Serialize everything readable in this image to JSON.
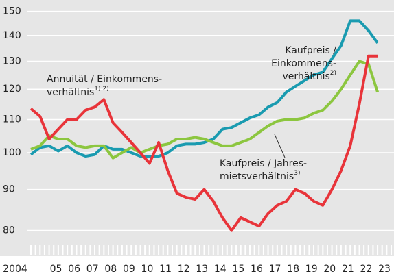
{
  "chart_data": {
    "type": "line",
    "x": [
      2004,
      2004.5,
      2005,
      2005.5,
      2006,
      2006.5,
      2007,
      2007.5,
      2008,
      2008.5,
      2009,
      2009.5,
      2010,
      2010.5,
      2011,
      2011.5,
      2012,
      2012.5,
      2013,
      2013.5,
      2014,
      2014.5,
      2015,
      2015.5,
      2016,
      2016.5,
      2017,
      2017.5,
      2018,
      2018.5,
      2019,
      2019.5,
      2020,
      2020.5,
      2021,
      2021.5,
      2022,
      2022.5,
      2023
    ],
    "series": [
      {
        "name": "Kaufpreis / Einkommensverhältnis",
        "color": "#1a9bb0",
        "values": [
          99.5,
          101.5,
          102,
          100.5,
          102,
          100,
          99,
          99.5,
          102,
          101,
          101,
          100,
          99,
          99,
          99,
          100,
          102,
          102.5,
          102.5,
          103,
          104,
          107,
          107.5,
          109,
          110.5,
          111.5,
          114,
          115.5,
          119,
          121,
          123,
          125,
          126,
          131,
          136,
          146,
          146,
          142,
          137
        ]
      },
      {
        "name": "Kaufpreis / Jahresmietsverhältnis",
        "color": "#8cc63f",
        "values": [
          101,
          102,
          105,
          104,
          104,
          102,
          101.5,
          102,
          102,
          98.5,
          100,
          101.5,
          100,
          101,
          102,
          102.5,
          104,
          104,
          104.5,
          104,
          103,
          102,
          102,
          103,
          104,
          106,
          108,
          109.5,
          110,
          110,
          110.5,
          112,
          113,
          116,
          120,
          125,
          130,
          129,
          119
        ]
      },
      {
        "name": "Annuität / Einkommensverhältnis",
        "color": "#e8343a",
        "values": [
          113.5,
          111,
          104,
          107,
          110,
          110,
          113,
          114,
          116.5,
          109,
          106,
          103,
          100,
          97,
          103,
          95,
          89,
          88,
          87.5,
          90,
          87,
          83,
          80,
          83,
          82,
          81,
          84,
          86,
          87,
          90,
          89,
          87,
          86,
          90,
          95,
          102,
          115,
          132,
          132
        ]
      }
    ],
    "annotations": [
      {
        "lines": [
          "Annuität / Einkommens-",
          "verhältnis"
        ],
        "footnote": "1) 2)"
      },
      {
        "lines": [
          "Kaufpreis /",
          "Einkommens-",
          "verhältnis"
        ],
        "footnote": "2)"
      },
      {
        "lines": [
          "Kaufpreis / Jahres-",
          "mietsverhältnis"
        ],
        "footnote": "3)"
      }
    ],
    "log_y": true,
    "grid": true,
    "xlim": [
      2004,
      2023.75
    ],
    "ylim": [
      77,
      155
    ],
    "yticks": [
      80,
      90,
      100,
      110,
      120,
      130,
      140,
      150
    ],
    "xticks": [
      {
        "value": 2004,
        "label": "2004"
      },
      {
        "value": 2005,
        "label": "05"
      },
      {
        "value": 2006,
        "label": "06"
      },
      {
        "value": 2007,
        "label": "07"
      },
      {
        "value": 2008,
        "label": "08"
      },
      {
        "value": 2009,
        "label": "09"
      },
      {
        "value": 2010,
        "label": "10"
      },
      {
        "value": 2011,
        "label": "11"
      },
      {
        "value": 2012,
        "label": "12"
      },
      {
        "value": 2013,
        "label": "13"
      },
      {
        "value": 2014,
        "label": "14"
      },
      {
        "value": 2015,
        "label": "15"
      },
      {
        "value": 2016,
        "label": "16"
      },
      {
        "value": 2017,
        "label": "17"
      },
      {
        "value": 2018,
        "label": "18"
      },
      {
        "value": 2019,
        "label": "19"
      },
      {
        "value": 2020,
        "label": "20"
      },
      {
        "value": 2021,
        "label": "21"
      },
      {
        "value": 2022,
        "label": "22"
      },
      {
        "value": 2023,
        "label": "23"
      }
    ]
  }
}
